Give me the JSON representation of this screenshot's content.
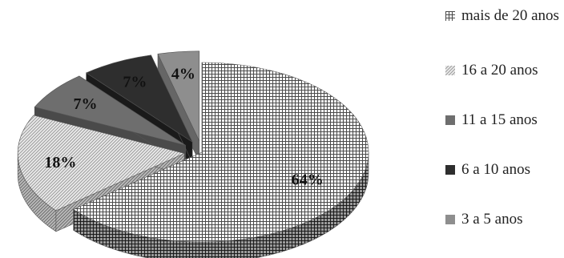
{
  "chart_data": {
    "type": "pie",
    "title": "",
    "categories": [
      "mais de 20 anos",
      "16 a 20 anos",
      "11 a 15 anos",
      "6 a 10 anos",
      "3 a 5 anos"
    ],
    "values": [
      64,
      18,
      7,
      7,
      4
    ],
    "labels": [
      "64%",
      "18%",
      "7%",
      "7%",
      "4%"
    ],
    "exploded": true,
    "three_d": true,
    "legend_position": "right",
    "colors": {
      "mais de 20 anos": "#8a8a8a",
      "16 a 20 anos": "#d8d8d8",
      "11 a 15 anos": "#6e6e6e",
      "6 a 10 anos": "#2e2e2e",
      "3 a 5 anos": "#8e8e8e"
    }
  },
  "legend": {
    "items": [
      {
        "label": "mais de 20 anos"
      },
      {
        "label": "16 a 20 anos"
      },
      {
        "label": "11 a 15 anos"
      },
      {
        "label": "6 a 10 anos"
      },
      {
        "label": "3 a 5 anos"
      }
    ]
  }
}
